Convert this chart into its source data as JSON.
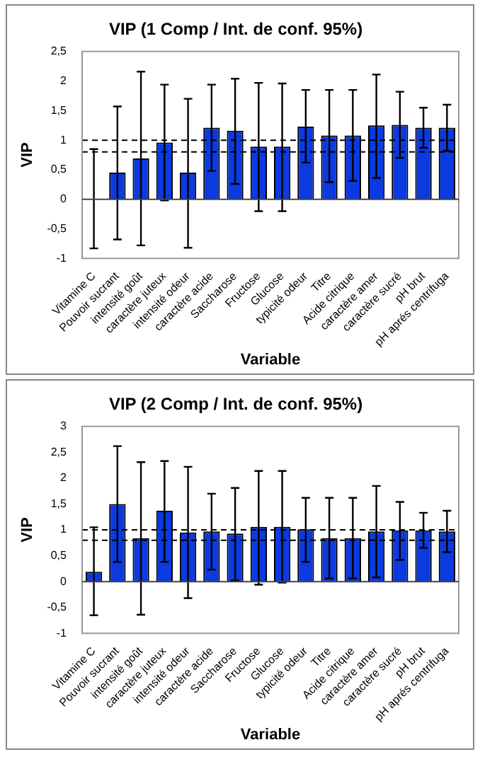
{
  "chart_data": [
    {
      "type": "bar",
      "title": "VIP (1 Comp / Int. de conf. 95%)",
      "xlabel": "Variable",
      "ylabel": "VIP",
      "categories": [
        "Vitamine C",
        "Pouvoir sucrant",
        "intensité goût",
        "caractère juteux",
        "intensité odeur",
        "caractère acide",
        "Saccharose",
        "Fructose",
        "Glucose",
        "typicité odeur",
        "Titre",
        "Acide citrique",
        "caractère amer",
        "caractère sucré",
        "pH brut",
        "pH aprés centrifuga"
      ],
      "series": [
        {
          "color": "#0a3ae0",
          "values": [
            0.01,
            0.45,
            0.69,
            0.96,
            0.45,
            1.21,
            1.16,
            0.89,
            0.89,
            1.23,
            1.08,
            1.08,
            1.25,
            1.26,
            1.21,
            1.21
          ],
          "errors": [
            [
              -0.83,
              0.85
            ],
            [
              -0.68,
              1.57
            ],
            [
              -0.78,
              2.16
            ],
            [
              -0.02,
              1.94
            ],
            [
              -0.82,
              1.7
            ],
            [
              0.48,
              1.94
            ],
            [
              0.26,
              2.04
            ],
            [
              -0.2,
              1.97
            ],
            [
              -0.2,
              1.96
            ],
            [
              0.62,
              1.85
            ],
            [
              0.29,
              1.85
            ],
            [
              0.31,
              1.85
            ],
            [
              0.36,
              2.11
            ],
            [
              0.7,
              1.82
            ],
            [
              0.87,
              1.55
            ],
            [
              0.82,
              1.6
            ]
          ]
        }
      ],
      "ylim": [
        -1,
        2.5
      ],
      "yticks": [
        {
          "value": -1,
          "label": "-1"
        },
        {
          "value": -0.5,
          "label": "-0,5"
        },
        0,
        {
          "value": 0.5,
          "label": "0,5"
        },
        1,
        {
          "value": 1.5,
          "label": "1,5"
        },
        2,
        {
          "value": 2.5,
          "label": "2,5"
        }
      ],
      "ref_lines": [
        {
          "axis": "y",
          "value": 1,
          "color": "#000000",
          "line_style": "dashed"
        },
        {
          "axis": "y",
          "value": 0.8,
          "color": "#000000",
          "line_style": "dashed"
        }
      ],
      "grid": false,
      "legend": false
    },
    {
      "type": "bar",
      "title": "VIP (2 Comp / Int. de conf. 95%)",
      "xlabel": "Variable",
      "ylabel": "VIP",
      "categories": [
        "Vitamine C",
        "Pouvoir sucrant",
        "intensité goût",
        "caractère juteux",
        "intensité odeur",
        "caractère acide",
        "Saccharose",
        "Fructose",
        "Glucose",
        "typicité odeur",
        "Titre",
        "Acide citrique",
        "caractère amer",
        "caractère sucré",
        "pH brut",
        "pH aprés centrifuga"
      ],
      "series": [
        {
          "color": "#0a3ae0",
          "values": [
            0.19,
            1.5,
            0.84,
            1.37,
            0.95,
            0.97,
            0.93,
            1.06,
            1.06,
            1.01,
            0.84,
            0.84,
            0.97,
            0.99,
            0.99,
            0.97
          ],
          "errors": [
            [
              -0.65,
              1.05
            ],
            [
              0.38,
              2.62
            ],
            [
              -0.64,
              2.31
            ],
            [
              0.38,
              2.33
            ],
            [
              -0.32,
              2.22
            ],
            [
              0.23,
              1.7
            ],
            [
              0.02,
              1.81
            ],
            [
              -0.06,
              2.14
            ],
            [
              -0.02,
              2.14
            ],
            [
              0.38,
              1.62
            ],
            [
              0.06,
              1.62
            ],
            [
              0.06,
              1.62
            ],
            [
              0.08,
              1.85
            ],
            [
              0.42,
              1.54
            ],
            [
              0.65,
              1.33
            ],
            [
              0.57,
              1.37
            ]
          ]
        }
      ],
      "ylim": [
        -1,
        3
      ],
      "yticks": [
        {
          "value": -1,
          "label": "-1"
        },
        {
          "value": -0.5,
          "label": "-0,5"
        },
        0,
        {
          "value": 0.5,
          "label": "0,5"
        },
        1,
        {
          "value": 1.5,
          "label": "1,5"
        },
        2,
        {
          "value": 2.5,
          "label": "2,5"
        },
        3
      ],
      "ref_lines": [
        {
          "axis": "y",
          "value": 1,
          "color": "#000000",
          "line_style": "dashed"
        },
        {
          "axis": "y",
          "value": 0.8,
          "color": "#000000",
          "line_style": "dashed"
        }
      ],
      "grid": false,
      "legend": false
    }
  ]
}
